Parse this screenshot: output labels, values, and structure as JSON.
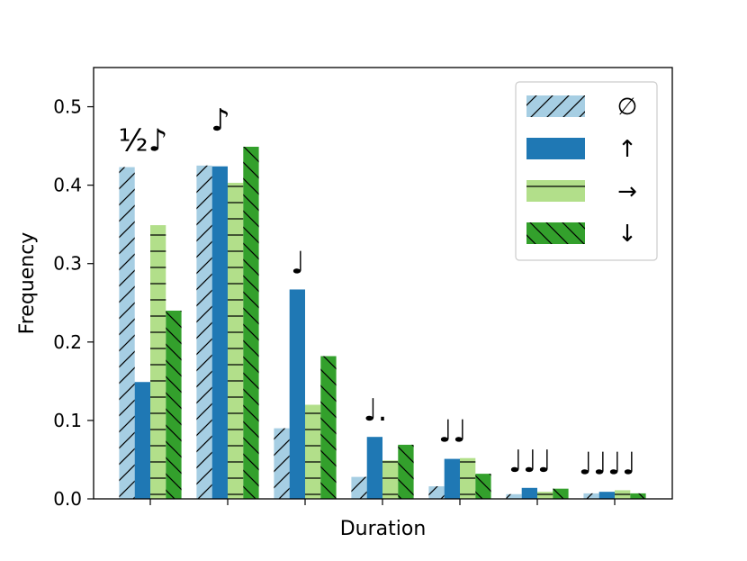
{
  "chart_data": {
    "type": "bar",
    "title": "",
    "xlabel": "Duration",
    "ylabel": "Frequency",
    "ylim": [
      0,
      0.55
    ],
    "yticks": [
      "0.0",
      "0.1",
      "0.2",
      "0.3",
      "0.4",
      "0.5"
    ],
    "grid": false,
    "legend_position": "top-right",
    "categories": [
      "½♪",
      "♪",
      "♩",
      "♩.",
      "♩♩",
      "♩♩♩",
      "♩♩♩♩"
    ],
    "series": [
      {
        "name": "∅",
        "color": "#a6cee3",
        "hatch": "diagonal",
        "values": [
          0.423,
          0.425,
          0.09,
          0.028,
          0.016,
          0.006,
          0.007
        ]
      },
      {
        "name": "↑",
        "color": "#1f78b4",
        "hatch": "none",
        "values": [
          0.149,
          0.424,
          0.267,
          0.079,
          0.051,
          0.014,
          0.009
        ]
      },
      {
        "name": "→",
        "color": "#b2df8a",
        "hatch": "horizontal",
        "values": [
          0.349,
          0.403,
          0.12,
          0.049,
          0.052,
          0.009,
          0.011
        ]
      },
      {
        "name": "↓",
        "color": "#33a02c",
        "hatch": "backslash",
        "values": [
          0.24,
          0.449,
          0.182,
          0.069,
          0.032,
          0.013,
          0.007
        ]
      }
    ]
  }
}
